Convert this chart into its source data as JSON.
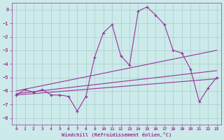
{
  "xlabel": "Windchill (Refroidissement éolien,°C)",
  "bg_color": "#cceaea",
  "grid_color": "#aacccc",
  "line_color": "#993399",
  "xlim": [
    -0.5,
    23.5
  ],
  "ylim": [
    -8.5,
    0.5
  ],
  "yticks": [
    0,
    -1,
    -2,
    -3,
    -4,
    -5,
    -6,
    -7,
    -8
  ],
  "xticks": [
    0,
    1,
    2,
    3,
    4,
    5,
    6,
    7,
    8,
    9,
    10,
    11,
    12,
    13,
    14,
    15,
    16,
    17,
    18,
    19,
    20,
    21,
    22,
    23
  ],
  "line1_x": [
    0,
    1,
    2,
    3,
    4,
    5,
    6,
    7,
    8,
    9,
    10,
    11,
    12,
    13,
    14,
    15,
    16,
    17,
    18,
    19,
    20,
    21,
    22,
    23
  ],
  "line1_y": [
    -6.3,
    -5.9,
    -6.1,
    -5.9,
    -6.3,
    -6.3,
    -6.4,
    -7.5,
    -6.4,
    -3.5,
    -1.7,
    -1.1,
    -3.4,
    -4.1,
    -0.1,
    0.2,
    -0.4,
    -1.1,
    -3.0,
    -3.2,
    -4.4,
    -6.8,
    -5.8,
    -5.0
  ],
  "line2_x": [
    0,
    23
  ],
  "line2_y": [
    -6.0,
    -3.0
  ],
  "line3_x": [
    0,
    23
  ],
  "line3_y": [
    -6.2,
    -4.5
  ],
  "line4_x": [
    0,
    23
  ],
  "line4_y": [
    -6.3,
    -5.1
  ]
}
